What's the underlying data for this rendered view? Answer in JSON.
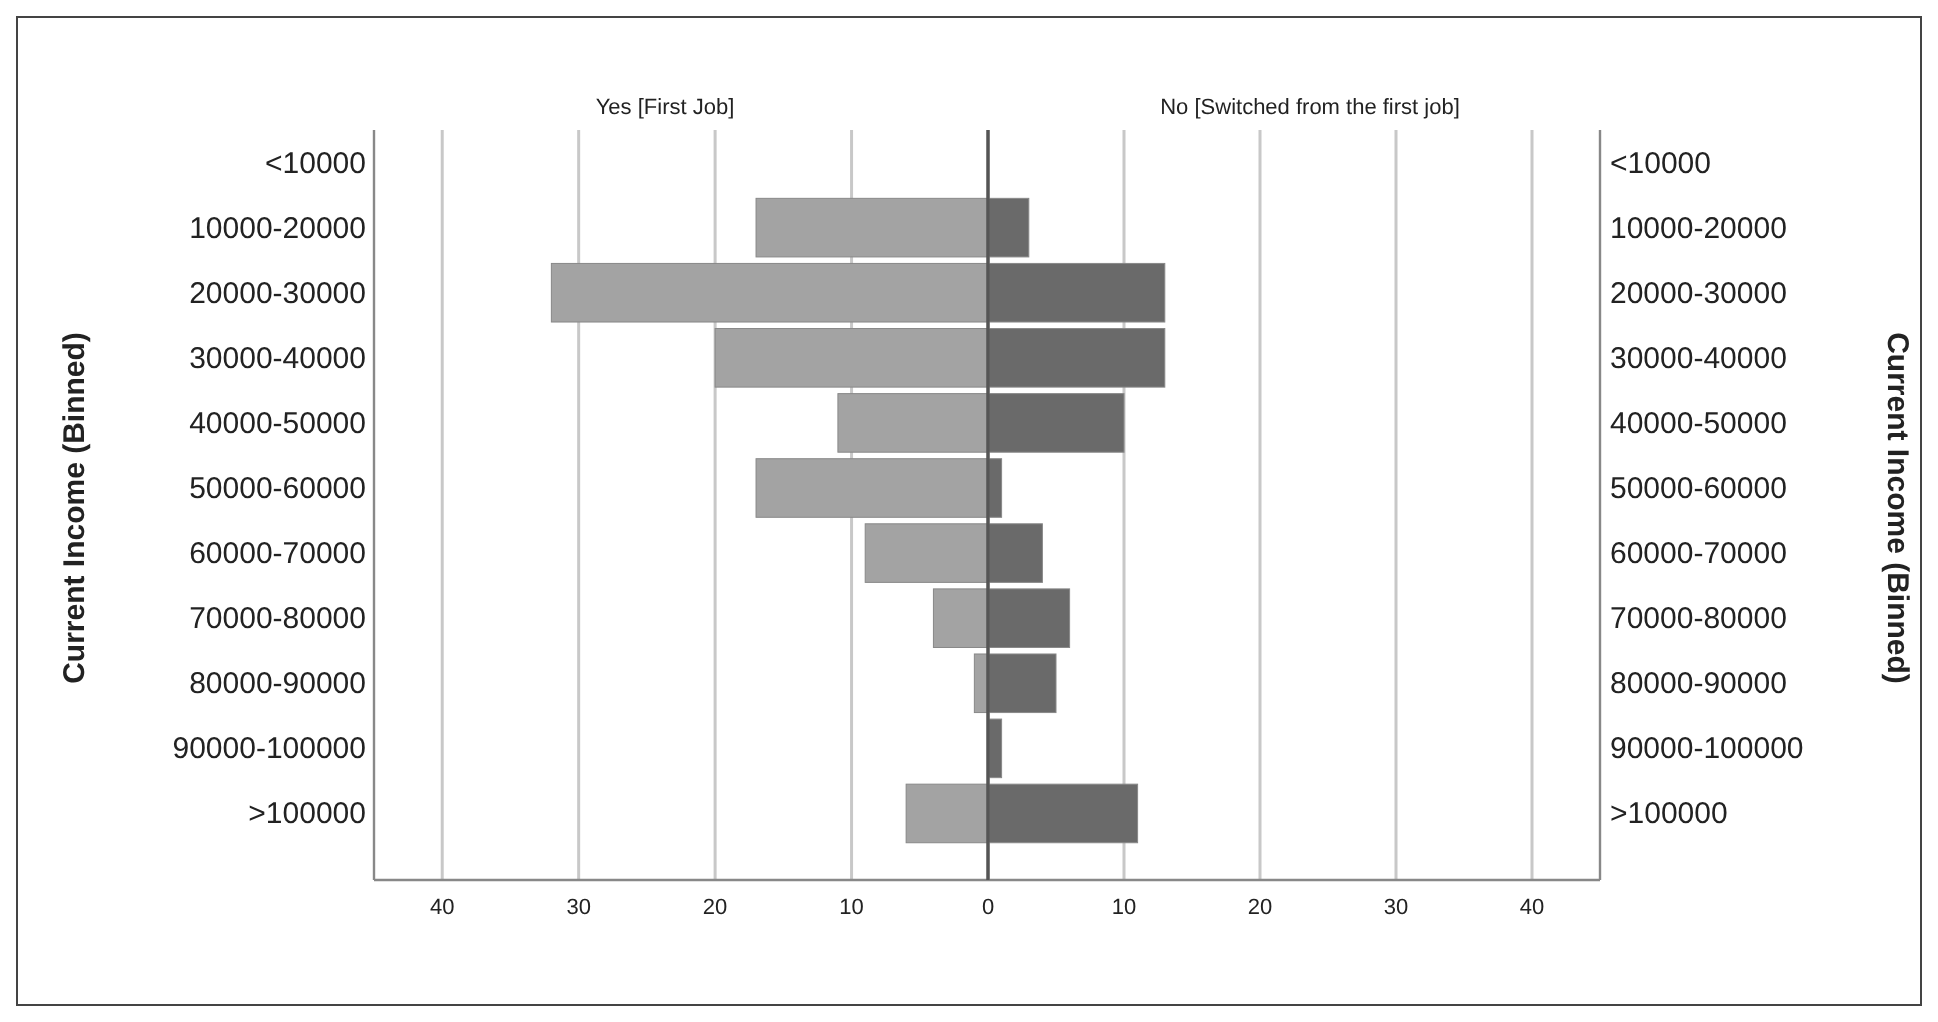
{
  "chart_data": [
    {
      "type": "bar",
      "orientation": "horizontal",
      "title": "Yes [First Job]",
      "ylabel": "Current Income (Binned)",
      "categories": [
        "<10000",
        "10000-20000",
        "20000-30000",
        "30000-40000",
        "40000-50000",
        "50000-60000",
        "60000-70000",
        "70000-80000",
        "80000-90000",
        "90000-100000",
        ">100000"
      ],
      "values": [
        0,
        17,
        32,
        20,
        11,
        17,
        9,
        4,
        1,
        0,
        6
      ],
      "color": "#a3a3a3",
      "xlim": [
        45,
        0
      ],
      "xticks": [
        40,
        30,
        20,
        10,
        0
      ],
      "grid": "x"
    },
    {
      "type": "bar",
      "orientation": "horizontal",
      "title": "No [Switched from the first job]",
      "ylabel": "Current Income (Binned)",
      "categories": [
        "<10000",
        "10000-20000",
        "20000-30000",
        "30000-40000",
        "40000-50000",
        "50000-60000",
        "60000-70000",
        "70000-80000",
        "80000-90000",
        "90000-100000",
        ">100000"
      ],
      "values": [
        0,
        3,
        13,
        13,
        10,
        1,
        4,
        6,
        5,
        1,
        11
      ],
      "color": "#6a6a6a",
      "xlim": [
        0,
        45
      ],
      "xticks": [
        10,
        20,
        30,
        40
      ],
      "grid": "x"
    }
  ]
}
